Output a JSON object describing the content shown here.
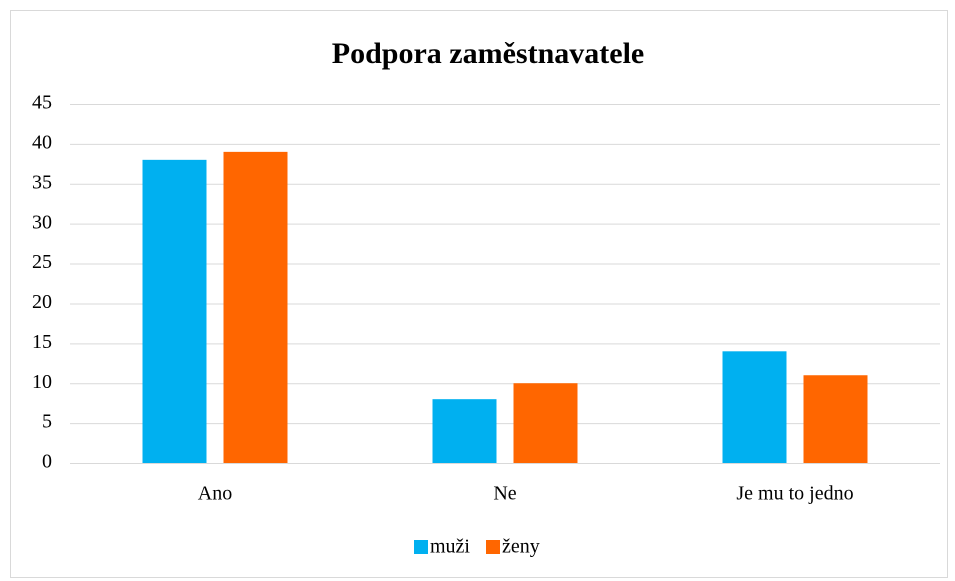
{
  "chart_data": {
    "type": "bar",
    "title": "Podpora zaměstnavatele",
    "categories": [
      "Ano",
      "Ne",
      "Je mu to jedno"
    ],
    "series": [
      {
        "name": "muži",
        "color": "#00b0f0",
        "values": [
          38,
          8,
          14
        ]
      },
      {
        "name": "ženy",
        "color": "#ff6600",
        "values": [
          39,
          10,
          11
        ]
      }
    ],
    "ylim": [
      0,
      45
    ],
    "yticks": [
      0,
      5,
      10,
      15,
      20,
      25,
      30,
      35,
      40,
      45
    ],
    "grid": true,
    "legend": "bottom"
  }
}
